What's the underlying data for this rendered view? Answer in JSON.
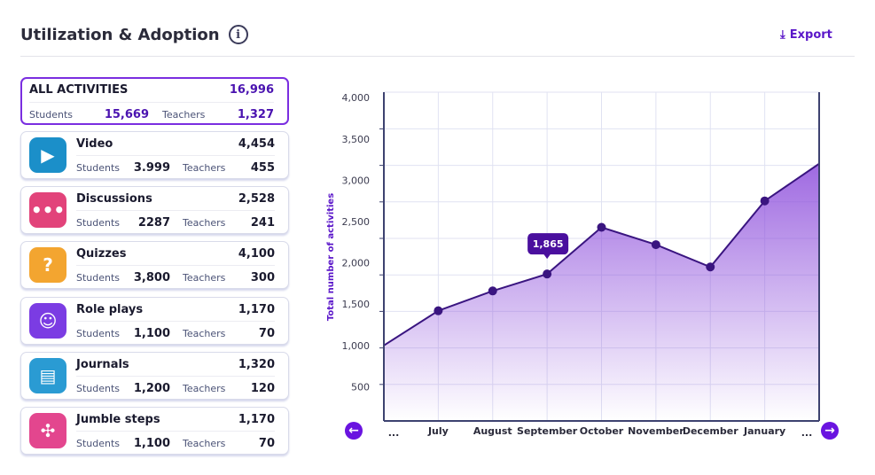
{
  "header": {
    "title": "Utilization & Adoption",
    "info_icon": "i",
    "export_label": "Export"
  },
  "all": {
    "label": "ALL ACTIVITIES",
    "total": "16,996",
    "students_label": "Students",
    "students": "15,669",
    "teachers_label": "Teachers",
    "teachers": "1,327"
  },
  "activities": [
    {
      "name": "Video",
      "total": "4,454",
      "students": "3.999",
      "teachers": "455",
      "icon": "tv-play-icon",
      "color": "#1b8fc9",
      "glyph": "▶"
    },
    {
      "name": "Discussions",
      "total": "2,528",
      "students": "2287",
      "teachers": "241",
      "icon": "chat-bubbles-icon",
      "color": "#e2437a",
      "glyph": "•••"
    },
    {
      "name": "Quizzes",
      "total": "4,100",
      "students": "3,800",
      "teachers": "300",
      "icon": "question-icon",
      "color": "#f3a530",
      "glyph": "?"
    },
    {
      "name": "Role plays",
      "total": "1,170",
      "students": "1,100",
      "teachers": "70",
      "icon": "theater-masks-icon",
      "color": "#7b3ce3",
      "glyph": "☺"
    },
    {
      "name": "Journals",
      "total": "1,320",
      "students": "1,200",
      "teachers": "120",
      "icon": "book-icon",
      "color": "#2a9bd3",
      "glyph": "▤"
    },
    {
      "name": "Jumble steps",
      "total": "1,170",
      "students": "1,100",
      "teachers": "70",
      "icon": "puzzle-icon",
      "color": "#e3468e",
      "glyph": "✣"
    }
  ],
  "labels": {
    "students": "Students",
    "teachers": "Teachers"
  },
  "chart_data": {
    "type": "area",
    "ylabel": "Total number of activities",
    "categories": [
      "...",
      "July",
      "August",
      "September",
      "October",
      "November",
      "December",
      "January",
      "..."
    ],
    "values": [
      1000,
      1420,
      1660,
      1865,
      2430,
      2220,
      1950,
      2750,
      3200
    ],
    "yticks": [
      500,
      1000,
      1500,
      2000,
      2500,
      3000,
      3500,
      4000
    ],
    "ytick_labels": [
      "500",
      "1,000",
      "1,500",
      "2,000",
      "2,500",
      "3,000",
      "3,500",
      "4,000"
    ],
    "ylim": [
      0,
      4000
    ],
    "tooltip": {
      "index": 3,
      "label": "1,865"
    },
    "grid": true,
    "line_color": "#3a1580",
    "fill_color": "#8e4fdc"
  }
}
